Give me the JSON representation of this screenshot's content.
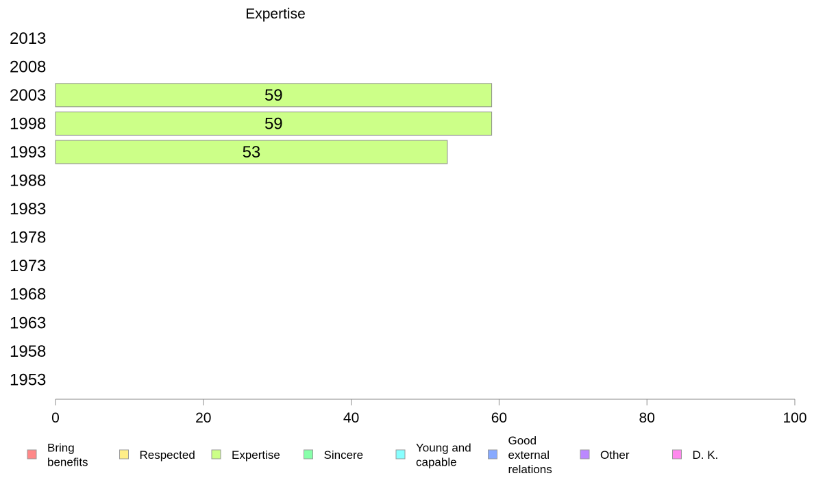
{
  "chart_data": {
    "type": "bar",
    "orientation": "horizontal",
    "title": "Expertise",
    "categories": [
      "2013",
      "2008",
      "2003",
      "1998",
      "1993",
      "1988",
      "1983",
      "1978",
      "1973",
      "1968",
      "1963",
      "1958",
      "1953"
    ],
    "series": [
      {
        "name": "Expertise",
        "color": "#ccff88",
        "values": [
          null,
          null,
          59,
          59,
          53,
          null,
          null,
          null,
          null,
          null,
          null,
          null,
          null
        ],
        "labels": [
          "",
          "",
          "59",
          "59",
          "53",
          "",
          "",
          "",
          "",
          "",
          "",
          "",
          ""
        ]
      }
    ],
    "xlim": [
      0,
      100
    ],
    "xticks": [
      "0",
      "20",
      "40",
      "60",
      "80",
      "100"
    ],
    "grid": false,
    "legend_position": "bottom",
    "legend": [
      {
        "lines": [
          "Bring",
          "benefits"
        ],
        "color": "#ff8888"
      },
      {
        "lines": [
          "Respected"
        ],
        "color": "#ffee88"
      },
      {
        "lines": [
          "Expertise"
        ],
        "color": "#ccff88"
      },
      {
        "lines": [
          "Sincere"
        ],
        "color": "#88ffaa"
      },
      {
        "lines": [
          "Young and",
          "capable"
        ],
        "color": "#88ffff"
      },
      {
        "lines": [
          "Good",
          "external",
          "relations"
        ],
        "color": "#88aaff"
      },
      {
        "lines": [
          "Other"
        ],
        "color": "#bb88ff"
      },
      {
        "lines": [
          "D. K."
        ],
        "color": "#ff88ee"
      }
    ]
  }
}
